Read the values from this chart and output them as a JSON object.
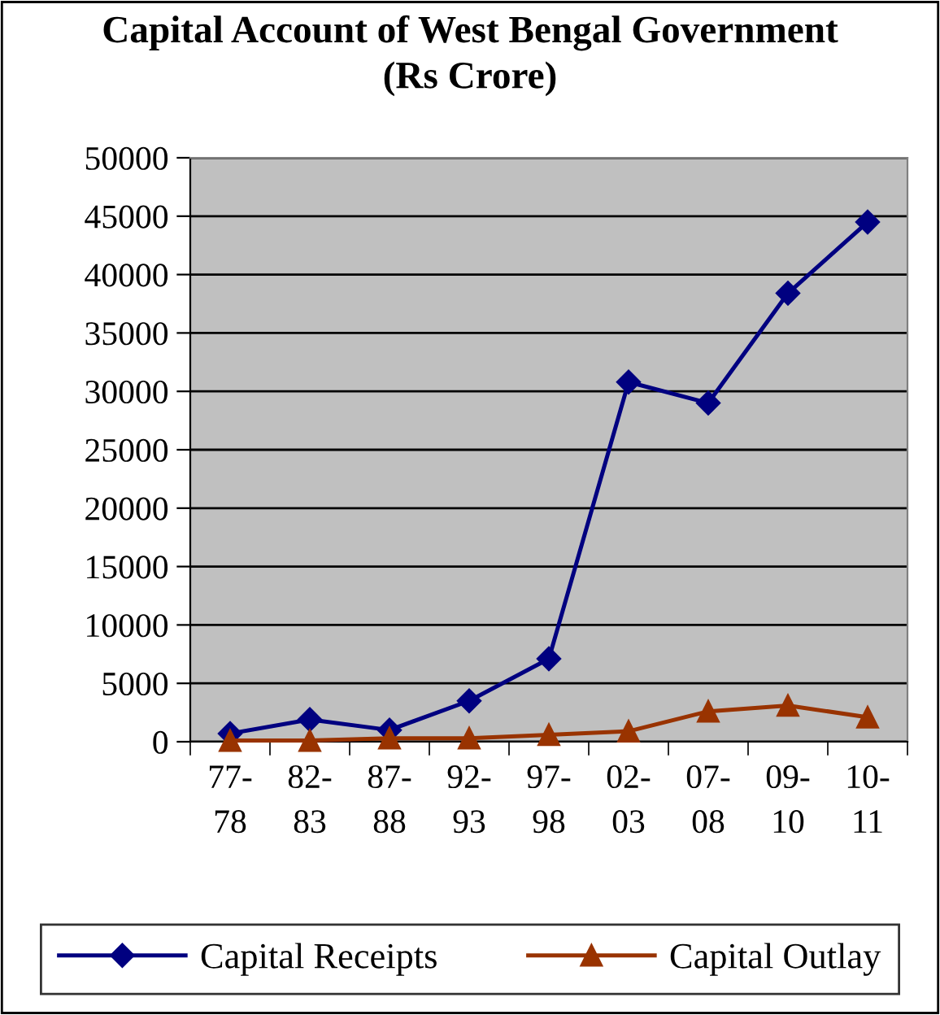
{
  "chart_data": {
    "type": "line",
    "title": "Capital Account of West Bengal Government (Rs Crore)",
    "categories": [
      "77-78",
      "82-83",
      "87-88",
      "92-93",
      "97-98",
      "02-03",
      "07-08",
      "09-10",
      "10-11"
    ],
    "series": [
      {
        "name": "Capital Receipts",
        "color": "#000080",
        "marker": "diamond",
        "values": [
          700,
          1900,
          1000,
          3500,
          7100,
          30800,
          29000,
          38400,
          44500
        ]
      },
      {
        "name": "Capital Outlay",
        "color": "#993300",
        "marker": "triangle",
        "values": [
          100,
          100,
          300,
          300,
          600,
          900,
          2600,
          3100,
          2100
        ]
      }
    ],
    "ylim": [
      0,
      50000
    ],
    "yticks": [
      0,
      5000,
      10000,
      15000,
      20000,
      25000,
      30000,
      35000,
      40000,
      45000,
      50000
    ],
    "grid": "y",
    "legend": "bottom",
    "line_style": "solid"
  }
}
